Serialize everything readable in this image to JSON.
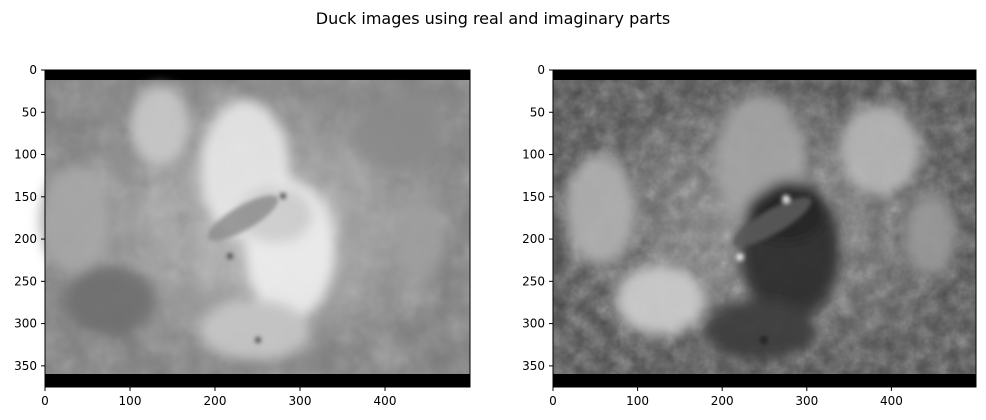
{
  "figure": {
    "suptitle": "Duck images using real and imaginary parts"
  },
  "chart_data": [
    {
      "type": "heatmap",
      "subplot": "left",
      "colormap": "gray",
      "image_shape": [
        375,
        500
      ],
      "title": "",
      "xlabel": "",
      "ylabel": "",
      "xlim": [
        0,
        500
      ],
      "ylim": [
        375,
        0
      ],
      "xticks": [
        0,
        100,
        200,
        300,
        400
      ],
      "yticks": [
        0,
        50,
        100,
        150,
        200,
        250,
        300,
        350
      ],
      "grid": false
    },
    {
      "type": "heatmap",
      "subplot": "right",
      "colormap": "gray",
      "image_shape": [
        375,
        500
      ],
      "title": "",
      "xlabel": "",
      "ylabel": "",
      "xlim": [
        0,
        500
      ],
      "ylim": [
        375,
        0
      ],
      "xticks": [
        0,
        100,
        200,
        300,
        400
      ],
      "yticks": [
        0,
        50,
        100,
        150,
        200,
        250,
        300,
        350
      ],
      "grid": false
    }
  ]
}
